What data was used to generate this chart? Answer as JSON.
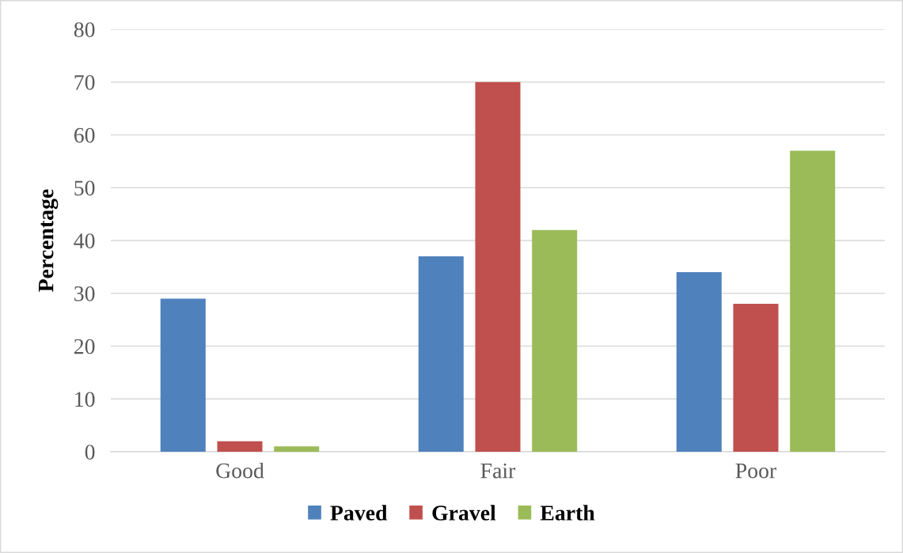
{
  "chart_data": {
    "type": "bar",
    "ylabel": "Percentage",
    "categories": [
      "Good",
      "Fair",
      "Poor"
    ],
    "series": [
      {
        "name": "Paved",
        "color": "#4f81bd",
        "values": [
          29,
          37,
          34
        ]
      },
      {
        "name": "Gravel",
        "color": "#c0504d",
        "values": [
          2,
          70,
          28
        ]
      },
      {
        "name": "Earth",
        "color": "#9bbb59",
        "values": [
          1,
          42,
          57
        ]
      }
    ],
    "ylim": [
      0,
      80
    ],
    "yticks": [
      0,
      10,
      20,
      30,
      40,
      50,
      60,
      70,
      80
    ],
    "grid": "y",
    "legend": "bottom"
  }
}
